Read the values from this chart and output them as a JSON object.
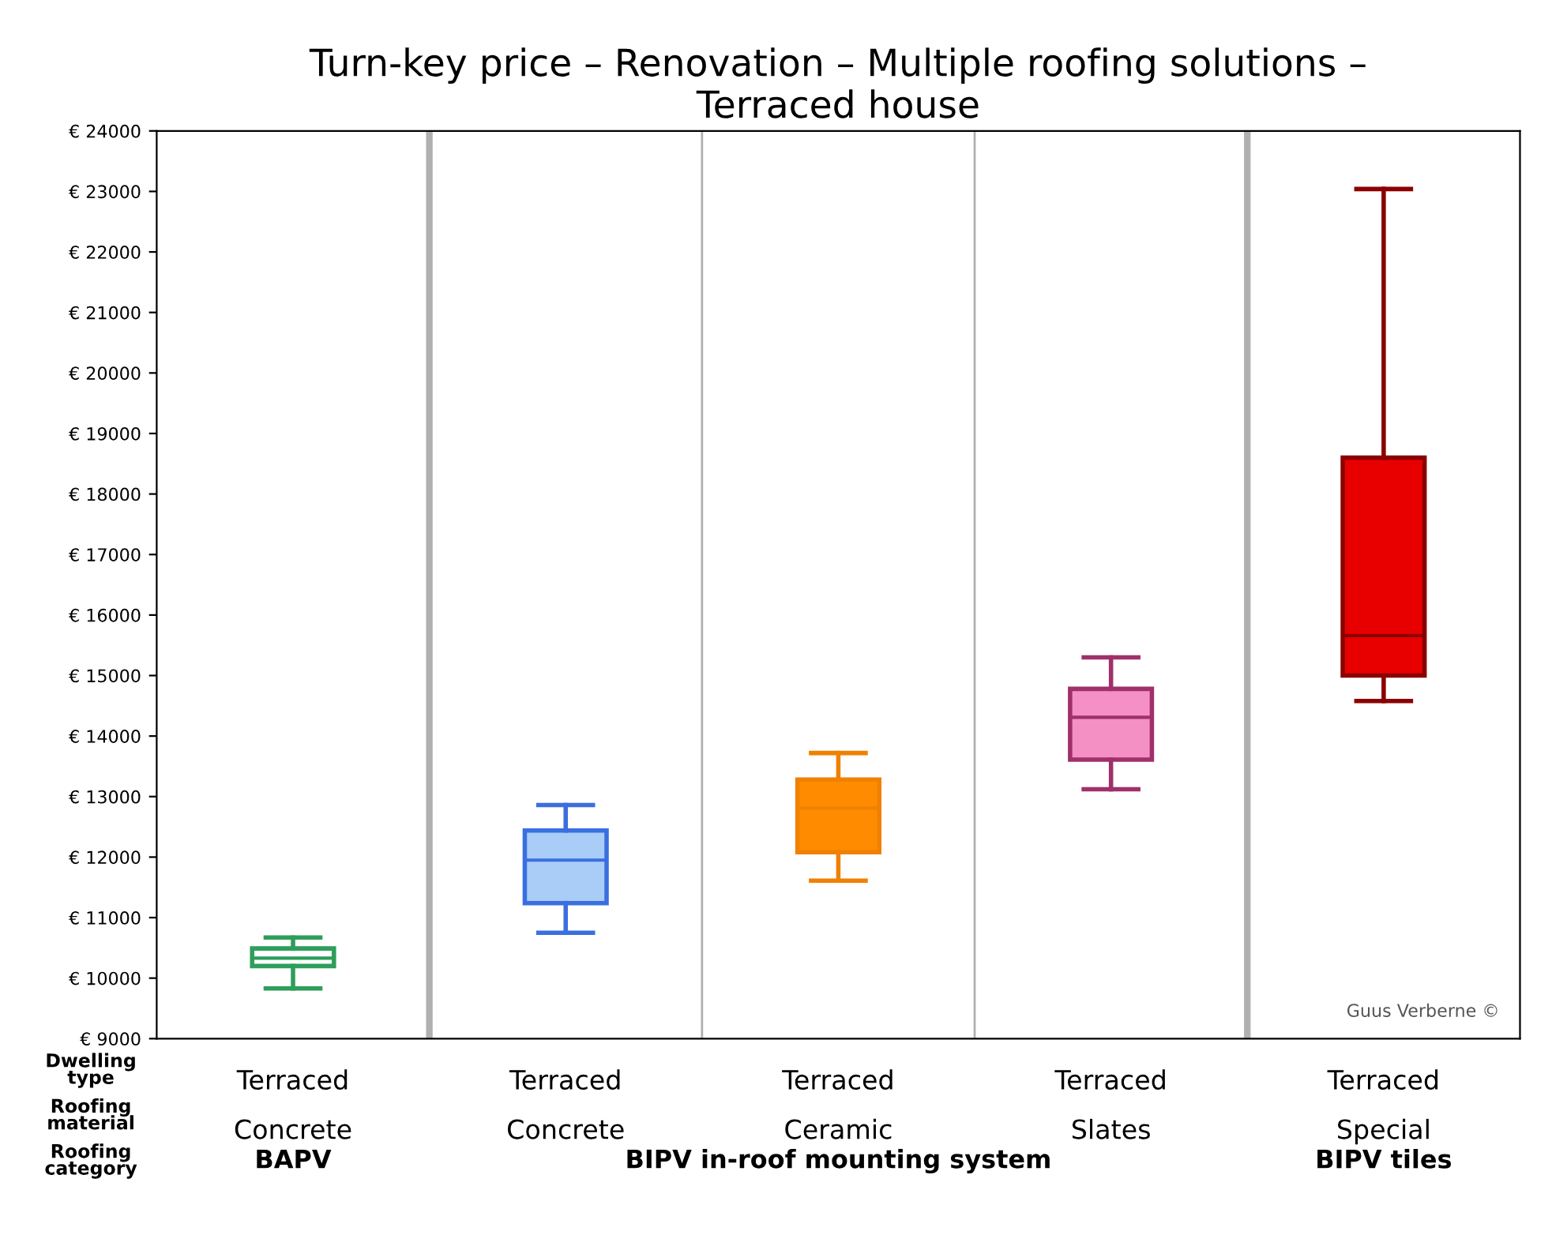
{
  "chart_data": {
    "type": "box",
    "title": "Turn-key price – Renovation – Multiple roofing solutions –\nTerraced house",
    "categories": [
      "Terraced\nConcrete",
      "Terraced\nConcrete",
      "Terraced\nCeramic",
      "Terraced\nSlates",
      "Terraced\nSpecial"
    ],
    "boxes": [
      {
        "low": 9830,
        "q1": 10200,
        "median": 10330,
        "q3": 10490,
        "high": 10670
      },
      {
        "low": 10750,
        "q1": 11240,
        "median": 11950,
        "q3": 12440,
        "high": 12860
      },
      {
        "low": 11610,
        "q1": 12080,
        "median": 12810,
        "q3": 13280,
        "high": 13720
      },
      {
        "low": 13120,
        "q1": 13610,
        "median": 14310,
        "q3": 14780,
        "high": 15300
      },
      {
        "low": 14580,
        "q1": 15000,
        "median": 15660,
        "q3": 18600,
        "high": 23040
      }
    ],
    "colors": [
      "#ffffff",
      "#a9cdf7",
      "#ff8c00",
      "#f590c4",
      "#e80000"
    ],
    "ylim": [
      9000,
      24000
    ],
    "yticks": [
      {
        "value": 9000,
        "label": "€ 9000"
      },
      {
        "value": 10000,
        "label": "€ 10000"
      },
      {
        "value": 11000,
        "label": "€ 11000"
      },
      {
        "value": 12000,
        "label": "€ 12000"
      },
      {
        "value": 13000,
        "label": "€ 13000"
      },
      {
        "value": 14000,
        "label": "€ 14000"
      },
      {
        "value": 15000,
        "label": "€ 15000"
      },
      {
        "value": 16000,
        "label": "€ 16000"
      },
      {
        "value": 17000,
        "label": "€ 17000"
      },
      {
        "value": 18000,
        "label": "€ 18000"
      },
      {
        "value": 19000,
        "label": "€ 19000"
      },
      {
        "value": 20000,
        "label": "€ 20000"
      },
      {
        "value": 21000,
        "label": "€ 21000"
      },
      {
        "value": 22000,
        "label": "€ 22000"
      },
      {
        "value": 23000,
        "label": "€ 23000"
      },
      {
        "value": 24000,
        "label": "€ 24000"
      }
    ],
    "grid": "x",
    "annotations": [
      "Dwelling\ntype",
      "Roofing\nmaterial",
      "Roofing\ncategory",
      "BAPV",
      "BIPV in-roof mounting system",
      "BIPV tiles",
      "Guus Verberne ©"
    ]
  }
}
